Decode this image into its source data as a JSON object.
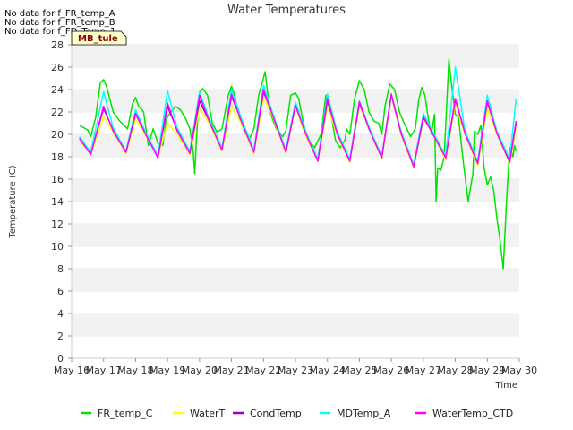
{
  "no_data_messages": [
    "No data for f_FR_temp_A",
    "No data for f_FR_temp_B",
    "No data for f_FD_Temp_1"
  ],
  "tag_label": "MB_tule",
  "chart_data": {
    "type": "line",
    "title": "Water Temperatures",
    "xlabel": "Time",
    "ylabel": "Temperature (C)",
    "xlim": [
      16,
      30
    ],
    "ylim": [
      0,
      28
    ],
    "x_tick_labels": [
      "May 16",
      "May 17",
      "May 18",
      "May 19",
      "May 20",
      "May 21",
      "May 22",
      "May 23",
      "May 24",
      "May 25",
      "May 26",
      "May 27",
      "May 28",
      "May 29",
      "May 30"
    ],
    "y_tick_labels": [
      "0",
      "2",
      "4",
      "6",
      "8",
      "10",
      "12",
      "14",
      "16",
      "18",
      "20",
      "22",
      "24",
      "26",
      "28"
    ],
    "grid": "horizontal alternating bands",
    "legend_position": "bottom",
    "series": [
      {
        "name": "FR_temp_C",
        "color": "#00e400",
        "x": [
          16.25,
          16.5,
          16.6,
          16.75,
          16.9,
          17.0,
          17.1,
          17.3,
          17.5,
          17.75,
          17.9,
          18.0,
          18.1,
          18.25,
          18.4,
          18.55,
          18.7,
          18.85,
          18.95,
          19.1,
          19.25,
          19.4,
          19.55,
          19.7,
          19.8,
          19.85,
          19.9,
          20.0,
          20.1,
          20.25,
          20.4,
          20.55,
          20.7,
          20.9,
          21.0,
          21.1,
          21.25,
          21.4,
          21.55,
          21.7,
          21.85,
          21.95,
          22.05,
          22.2,
          22.4,
          22.6,
          22.7,
          22.85,
          23.0,
          23.1,
          23.25,
          23.4,
          23.6,
          23.8,
          23.95,
          24.1,
          24.25,
          24.4,
          24.55,
          24.6,
          24.7,
          24.85,
          25.0,
          25.15,
          25.3,
          25.45,
          25.6,
          25.7,
          25.8,
          25.95,
          26.1,
          26.25,
          26.4,
          26.6,
          26.75,
          26.85,
          26.95,
          27.05,
          27.15,
          27.25,
          27.35,
          27.4,
          27.45,
          27.55,
          27.65,
          27.8,
          27.9,
          28.0,
          28.1,
          28.25,
          28.4,
          28.55,
          28.6,
          28.7,
          28.8,
          28.9,
          29.0,
          29.1,
          29.2,
          29.3,
          29.4,
          29.5,
          29.6,
          29.7,
          29.8,
          29.85,
          29.9
        ],
        "y": [
          20.8,
          20.4,
          19.8,
          21.5,
          24.6,
          24.9,
          24.2,
          22.0,
          21.2,
          20.5,
          22.7,
          23.3,
          22.5,
          22.0,
          19.0,
          20.5,
          19.2,
          19.0,
          21.3,
          22.0,
          22.5,
          22.2,
          21.5,
          20.5,
          18.5,
          16.5,
          19.5,
          23.8,
          24.1,
          23.5,
          21.0,
          20.2,
          20.5,
          23.5,
          24.3,
          23.5,
          21.5,
          20.2,
          19.5,
          20.5,
          23.5,
          24.5,
          25.6,
          22.0,
          20.5,
          19.8,
          20.3,
          23.5,
          23.7,
          23.2,
          21.0,
          19.5,
          18.8,
          20.0,
          23.5,
          22.0,
          19.5,
          18.8,
          19.5,
          20.5,
          20.0,
          23.2,
          24.8,
          24.0,
          22.0,
          21.2,
          21.0,
          20.0,
          22.5,
          24.5,
          24.0,
          22.0,
          21.0,
          19.8,
          20.5,
          23.0,
          24.2,
          23.5,
          21.5,
          20.0,
          21.8,
          14.0,
          17.0,
          16.8,
          18.0,
          26.7,
          24.0,
          21.8,
          21.5,
          17.5,
          14.0,
          16.5,
          20.3,
          20.0,
          20.8,
          17.0,
          15.5,
          16.2,
          15.0,
          12.5,
          10.5,
          8.0,
          14.0,
          18.8,
          18.0,
          19.0,
          18.5
        ]
      },
      {
        "name": "WaterT",
        "color": "#ffff00",
        "x": [
          16.25,
          16.6,
          17.0,
          17.3,
          17.7,
          18.0,
          18.3,
          18.7,
          19.0,
          19.3,
          19.7,
          20.0,
          20.3,
          20.7,
          21.0,
          21.3,
          21.7,
          22.0,
          22.3,
          22.7,
          23.0,
          23.3,
          23.7,
          24.0,
          24.3,
          24.7,
          25.0,
          25.3,
          25.7,
          26.0,
          26.3,
          26.7,
          27.0,
          27.3,
          27.7,
          28.0,
          28.3,
          28.7,
          29.0,
          29.3,
          29.7,
          29.9
        ],
        "y": [
          19.5,
          18.2,
          21.6,
          20.2,
          18.3,
          21.4,
          20.0,
          18.0,
          21.0,
          20.0,
          18.2,
          22.3,
          21.0,
          18.5,
          22.5,
          21.0,
          18.3,
          23.3,
          21.5,
          18.3,
          22.5,
          20.0,
          17.6,
          22.5,
          20.0,
          17.5,
          22.6,
          20.5,
          17.8,
          23.4,
          20.0,
          17.0,
          21.4,
          20.0,
          17.7,
          22.8,
          20.0,
          17.2,
          22.3,
          20.0,
          17.4,
          20.5
        ]
      },
      {
        "name": "CondTemp",
        "color": "#9400d3",
        "x": [
          16.25,
          16.6,
          17.0,
          17.3,
          17.7,
          18.0,
          18.3,
          18.7,
          19.0,
          19.3,
          19.7,
          20.0,
          20.3,
          20.7,
          21.0,
          21.3,
          21.7,
          22.0,
          22.3,
          22.7,
          23.0,
          23.3,
          23.7,
          24.0,
          24.3,
          24.7,
          25.0,
          25.3,
          25.7,
          26.0,
          26.3,
          26.7,
          27.0,
          27.3,
          27.7,
          28.0,
          28.3,
          28.7,
          29.0,
          29.3,
          29.7,
          29.9
        ],
        "y": [
          19.7,
          18.3,
          22.3,
          20.4,
          18.4,
          21.8,
          20.2,
          18.0,
          22.5,
          20.4,
          18.4,
          23.0,
          21.2,
          18.7,
          23.4,
          21.3,
          18.5,
          23.8,
          21.7,
          18.5,
          22.6,
          20.3,
          17.7,
          23.0,
          20.2,
          17.7,
          22.8,
          20.6,
          18.0,
          23.5,
          20.2,
          17.2,
          21.5,
          20.1,
          18.0,
          23.1,
          20.2,
          17.5,
          22.9,
          20.2,
          17.6,
          21.0
        ]
      },
      {
        "name": "MDTemp_A",
        "color": "#00ffff",
        "x": [
          16.25,
          16.6,
          17.0,
          17.3,
          17.7,
          18.0,
          18.3,
          18.7,
          19.0,
          19.3,
          19.7,
          20.0,
          20.3,
          20.7,
          21.0,
          21.3,
          21.7,
          22.0,
          22.3,
          22.7,
          23.0,
          23.3,
          23.7,
          24.0,
          24.3,
          24.7,
          25.0,
          25.3,
          25.7,
          26.0,
          26.3,
          26.7,
          27.0,
          27.3,
          27.7,
          28.0,
          28.3,
          28.7,
          29.0,
          29.3,
          29.7,
          29.9
        ],
        "y": [
          19.8,
          18.4,
          23.8,
          20.6,
          18.5,
          22.2,
          20.3,
          18.1,
          23.9,
          20.6,
          18.5,
          23.8,
          21.4,
          18.8,
          24.0,
          21.5,
          18.6,
          24.4,
          21.8,
          18.6,
          22.9,
          20.4,
          17.8,
          23.6,
          20.3,
          17.8,
          23.0,
          20.7,
          18.0,
          23.5,
          20.3,
          17.3,
          21.9,
          20.2,
          18.1,
          26.0,
          20.3,
          17.6,
          23.5,
          20.3,
          17.8,
          23.2
        ]
      },
      {
        "name": "WaterTemp_CTD",
        "color": "#ff00ff",
        "x": [
          16.25,
          16.6,
          17.0,
          17.3,
          17.7,
          18.0,
          18.3,
          18.7,
          19.0,
          19.3,
          19.7,
          20.0,
          20.3,
          20.7,
          21.0,
          21.3,
          21.7,
          22.0,
          22.3,
          22.7,
          23.0,
          23.3,
          23.7,
          24.0,
          24.3,
          24.7,
          25.0,
          25.3,
          25.7,
          26.0,
          26.3,
          26.7,
          27.0,
          27.3,
          27.7,
          28.0,
          28.3,
          28.7,
          29.0,
          29.3,
          29.7,
          29.9
        ],
        "y": [
          19.6,
          18.2,
          22.5,
          20.3,
          18.4,
          21.9,
          20.1,
          17.9,
          22.8,
          20.3,
          18.3,
          23.5,
          21.2,
          18.6,
          23.6,
          21.2,
          18.4,
          24.0,
          21.6,
          18.4,
          22.6,
          20.2,
          17.6,
          23.2,
          20.1,
          17.6,
          22.9,
          20.5,
          17.9,
          23.6,
          20.1,
          17.1,
          21.6,
          20.0,
          17.9,
          23.2,
          20.1,
          17.4,
          23.0,
          20.1,
          17.5,
          21.2
        ]
      }
    ]
  }
}
